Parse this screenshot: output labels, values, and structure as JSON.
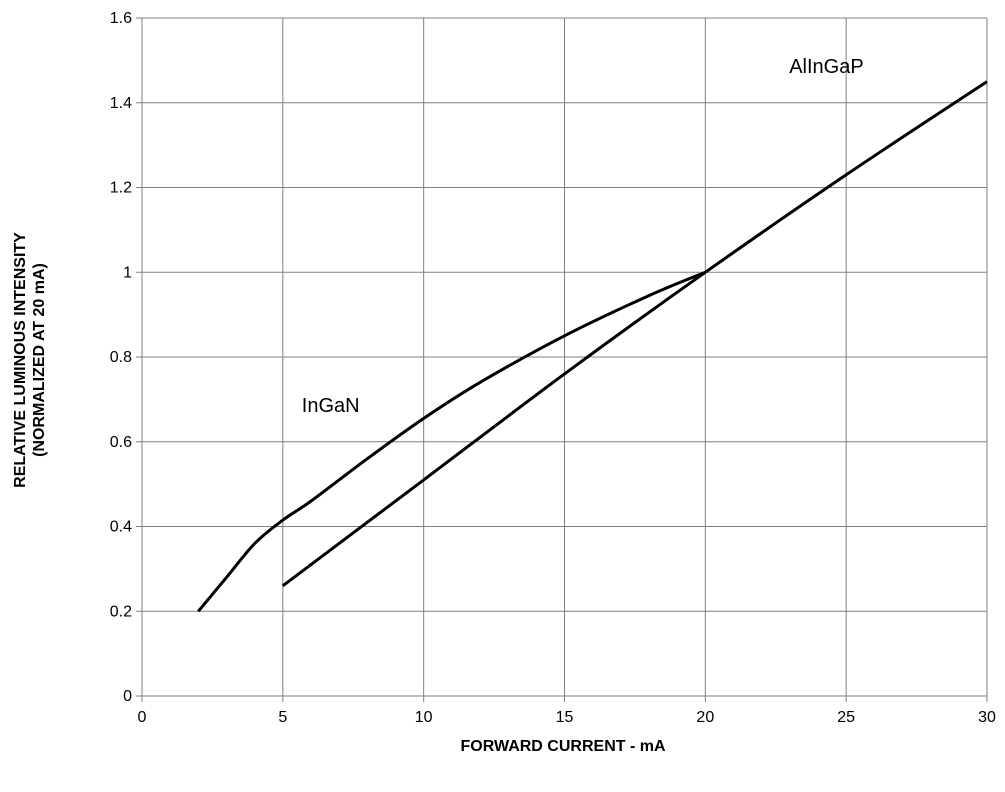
{
  "chart_data": {
    "type": "line",
    "title": "",
    "xlabel": "FORWARD CURRENT - mA",
    "ylabel_lines": [
      "RELATIVE LUMINOUS INTENSITY",
      "(NORMALIZED AT 20 mA)"
    ],
    "xlim": [
      0,
      30
    ],
    "ylim": [
      0,
      1.6
    ],
    "x_ticks": [
      0,
      5,
      10,
      15,
      20,
      25,
      30
    ],
    "y_ticks": [
      0,
      0.2,
      0.4,
      0.6,
      0.8,
      1,
      1.2,
      1.4,
      1.6
    ],
    "x_tick_labels": [
      "0",
      "5",
      "10",
      "15",
      "20",
      "25",
      "30"
    ],
    "y_tick_labels": [
      "0",
      "0.2",
      "0.4",
      "0.6",
      "0.8",
      "1",
      "1.2",
      "1.4",
      "1.6"
    ],
    "grid": true,
    "series": [
      {
        "name": "InGaN",
        "x": [
          2,
          3,
          4,
          5,
          6,
          8,
          10,
          12,
          15,
          18,
          20
        ],
        "y": [
          0.2,
          0.28,
          0.36,
          0.415,
          0.46,
          0.56,
          0.655,
          0.74,
          0.85,
          0.945,
          1.0
        ]
      },
      {
        "name": "AlInGaP",
        "x": [
          5,
          10,
          15,
          20,
          25,
          30
        ],
        "y": [
          0.26,
          0.51,
          0.76,
          1.0,
          1.23,
          1.45
        ]
      }
    ],
    "annotations": [
      {
        "text": "InGaN",
        "x": 6.7,
        "y": 0.67
      },
      {
        "text": "AlInGaP",
        "x": 24.3,
        "y": 1.47
      }
    ],
    "line_color": "#000000",
    "grid_color": "#808080"
  }
}
